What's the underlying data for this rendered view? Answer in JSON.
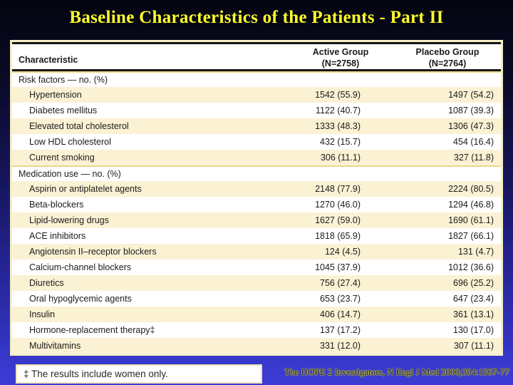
{
  "slide": {
    "title": "Baseline Characteristics of the Patients - Part II",
    "footnote": "‡ The results include women only.",
    "citation": "The HOPE 2 Investigators, N Engl J Med 2006;354:1567-77"
  },
  "table": {
    "header": {
      "characteristic": "Characteristic",
      "active_line1": "Active Group",
      "active_line2": "(N=2758)",
      "placebo_line1": "Placebo Group",
      "placebo_line2": "(N=2764)"
    },
    "rows": [
      {
        "label": "Risk factors — no. (%)",
        "section": true,
        "active": "",
        "placebo": ""
      },
      {
        "label": "Hypertension",
        "section": false,
        "active": "1542 (55.9)",
        "placebo": "1497 (54.2)"
      },
      {
        "label": "Diabetes mellitus",
        "section": false,
        "active": "1122 (40.7)",
        "placebo": "1087 (39.3)"
      },
      {
        "label": "Elevated total cholesterol",
        "section": false,
        "active": "1333 (48.3)",
        "placebo": "1306 (47.3)"
      },
      {
        "label": "Low HDL cholesterol",
        "section": false,
        "active": "432 (15.7)",
        "placebo": "454 (16.4)"
      },
      {
        "label": "Current smoking",
        "section": false,
        "active": "306 (11.1)",
        "placebo": "327 (11.8)"
      },
      {
        "label": "Medication use — no. (%)",
        "section": true,
        "active": "",
        "placebo": ""
      },
      {
        "label": "Aspirin or antiplatelet agents",
        "section": false,
        "active": "2148 (77.9)",
        "placebo": "2224 (80.5)"
      },
      {
        "label": "Beta-blockers",
        "section": false,
        "active": "1270 (46.0)",
        "placebo": "1294 (46.8)"
      },
      {
        "label": "Lipid-lowering drugs",
        "section": false,
        "active": "1627 (59.0)",
        "placebo": "1690 (61.1)"
      },
      {
        "label": "ACE inhibitors",
        "section": false,
        "active": "1818 (65.9)",
        "placebo": "1827 (66.1)"
      },
      {
        "label": "Angiotensin II–receptor blockers",
        "section": false,
        "active": "124 (4.5)",
        "placebo": "131 (4.7)"
      },
      {
        "label": "Calcium-channel blockers",
        "section": false,
        "active": "1045 (37.9)",
        "placebo": "1012 (36.6)"
      },
      {
        "label": "Diuretics",
        "section": false,
        "active": "756 (27.4)",
        "placebo": "696 (25.2)"
      },
      {
        "label": "Oral hypoglycemic agents",
        "section": false,
        "active": "653 (23.7)",
        "placebo": "647 (23.4)"
      },
      {
        "label": "Insulin",
        "section": false,
        "active": "406 (14.7)",
        "placebo": "361 (13.1)"
      },
      {
        "label": "Hormone-replacement therapy‡",
        "section": false,
        "active": "137 (17.2)",
        "placebo": "130 (17.0)"
      },
      {
        "label": "Multivitamins",
        "section": false,
        "active": "331 (12.0)",
        "placebo": "307 (11.1)"
      }
    ]
  },
  "colors": {
    "title_yellow": "#ffff2e",
    "row_cream": "#fbf2d4",
    "rule_yellow": "#e9d88c",
    "citation_blue": "#15155e",
    "background_bottom_blue": "#3d3dd6"
  }
}
